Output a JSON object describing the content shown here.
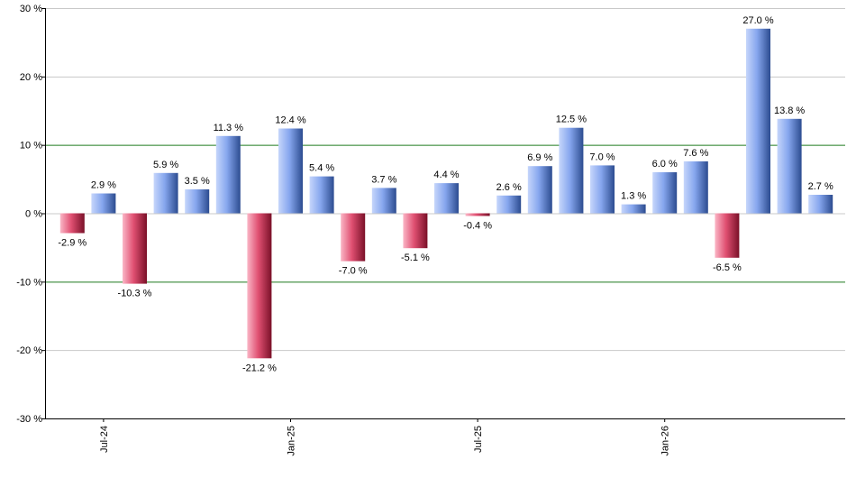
{
  "chart_data": {
    "type": "bar",
    "title": "",
    "xlabel": "",
    "ylabel": "",
    "ylim": [
      -30,
      30
    ],
    "y_ticks": [
      30,
      20,
      10,
      0,
      -10,
      -20,
      -30
    ],
    "y_tick_labels": [
      "30 %",
      "20 %",
      "10 %",
      "0 %",
      "-10 %",
      "-20 %",
      "-30 %"
    ],
    "reference_lines": [
      10,
      -10
    ],
    "grid": true,
    "legend": "none",
    "colors": {
      "positive_light": "#c6d6fb",
      "positive_mid": "#86a6ee",
      "positive_dark": "#2c4c90",
      "negative_light": "#fab6c6",
      "negative_mid": "#e05072",
      "negative_dark": "#7a1028",
      "grid": "#c8c8c8",
      "reference": "#1f7a1f",
      "axis": "#000000"
    },
    "x_ticks": [
      {
        "label": "Jul-24",
        "index": 1
      },
      {
        "label": "Jan-25",
        "index": 7
      },
      {
        "label": "Jul-25",
        "index": 13
      },
      {
        "label": "Jan-26",
        "index": 19
      }
    ],
    "values": [
      -2.9,
      2.9,
      -10.3,
      5.9,
      3.5,
      11.3,
      -21.2,
      12.4,
      5.4,
      -7.0,
      3.7,
      -5.1,
      4.4,
      -0.4,
      2.6,
      6.9,
      12.5,
      7.0,
      1.3,
      6.0,
      7.6,
      -6.5,
      27.0,
      13.8,
      2.7
    ],
    "data_labels": [
      "-2.9 %",
      "2.9 %",
      "-10.3 %",
      "5.9 %",
      "3.5 %",
      "11.3 %",
      "-21.2 %",
      "12.4 %",
      "5.4 %",
      "-7.0 %",
      "3.7 %",
      "-5.1 %",
      "4.4 %",
      "-0.4 %",
      "2.6 %",
      "6.9 %",
      "12.5 %",
      "7.0 %",
      "1.3 %",
      "6.0 %",
      "7.6 %",
      "-6.5 %",
      "27.0 %",
      "13.8 %",
      "2.7 %"
    ]
  }
}
